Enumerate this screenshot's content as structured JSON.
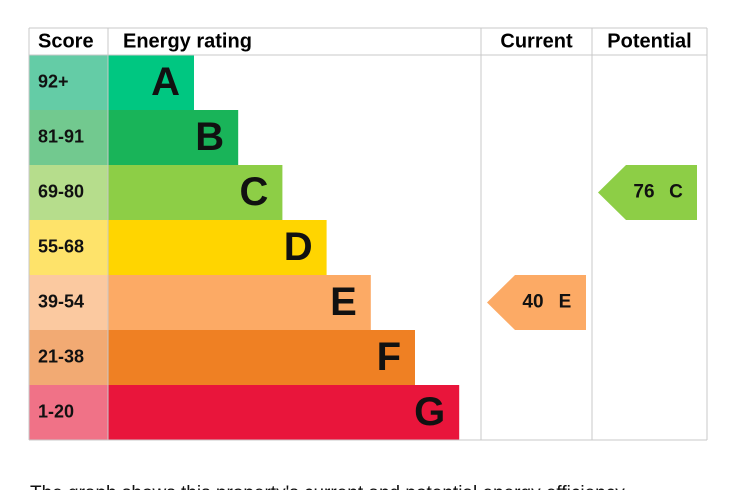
{
  "header": {
    "score": "Score",
    "rating": "Energy rating",
    "current": "Current",
    "potential": "Potential"
  },
  "rows": [
    {
      "score": "92+",
      "letter": "A",
      "color": "#00c781",
      "score_color": "#64cca6"
    },
    {
      "score": "81-91",
      "letter": "B",
      "color": "#19b459",
      "score_color": "#72c98f"
    },
    {
      "score": "69-80",
      "letter": "C",
      "color": "#8dce46",
      "score_color": "#b6dd8c"
    },
    {
      "score": "55-68",
      "letter": "D",
      "color": "#ffd500",
      "score_color": "#fee36a"
    },
    {
      "score": "39-54",
      "letter": "E",
      "color": "#fcaa65",
      "score_color": "#fbc9a0"
    },
    {
      "score": "21-38",
      "letter": "F",
      "color": "#ef8023",
      "score_color": "#f2aa73"
    },
    {
      "score": "1-20",
      "letter": "G",
      "color": "#e9153b",
      "score_color": "#f07287"
    }
  ],
  "current": {
    "score": 40,
    "band": "E"
  },
  "potential": {
    "score": 76,
    "band": "C"
  },
  "footnote": "The graph shows this property's current and potential energy efficiency."
}
